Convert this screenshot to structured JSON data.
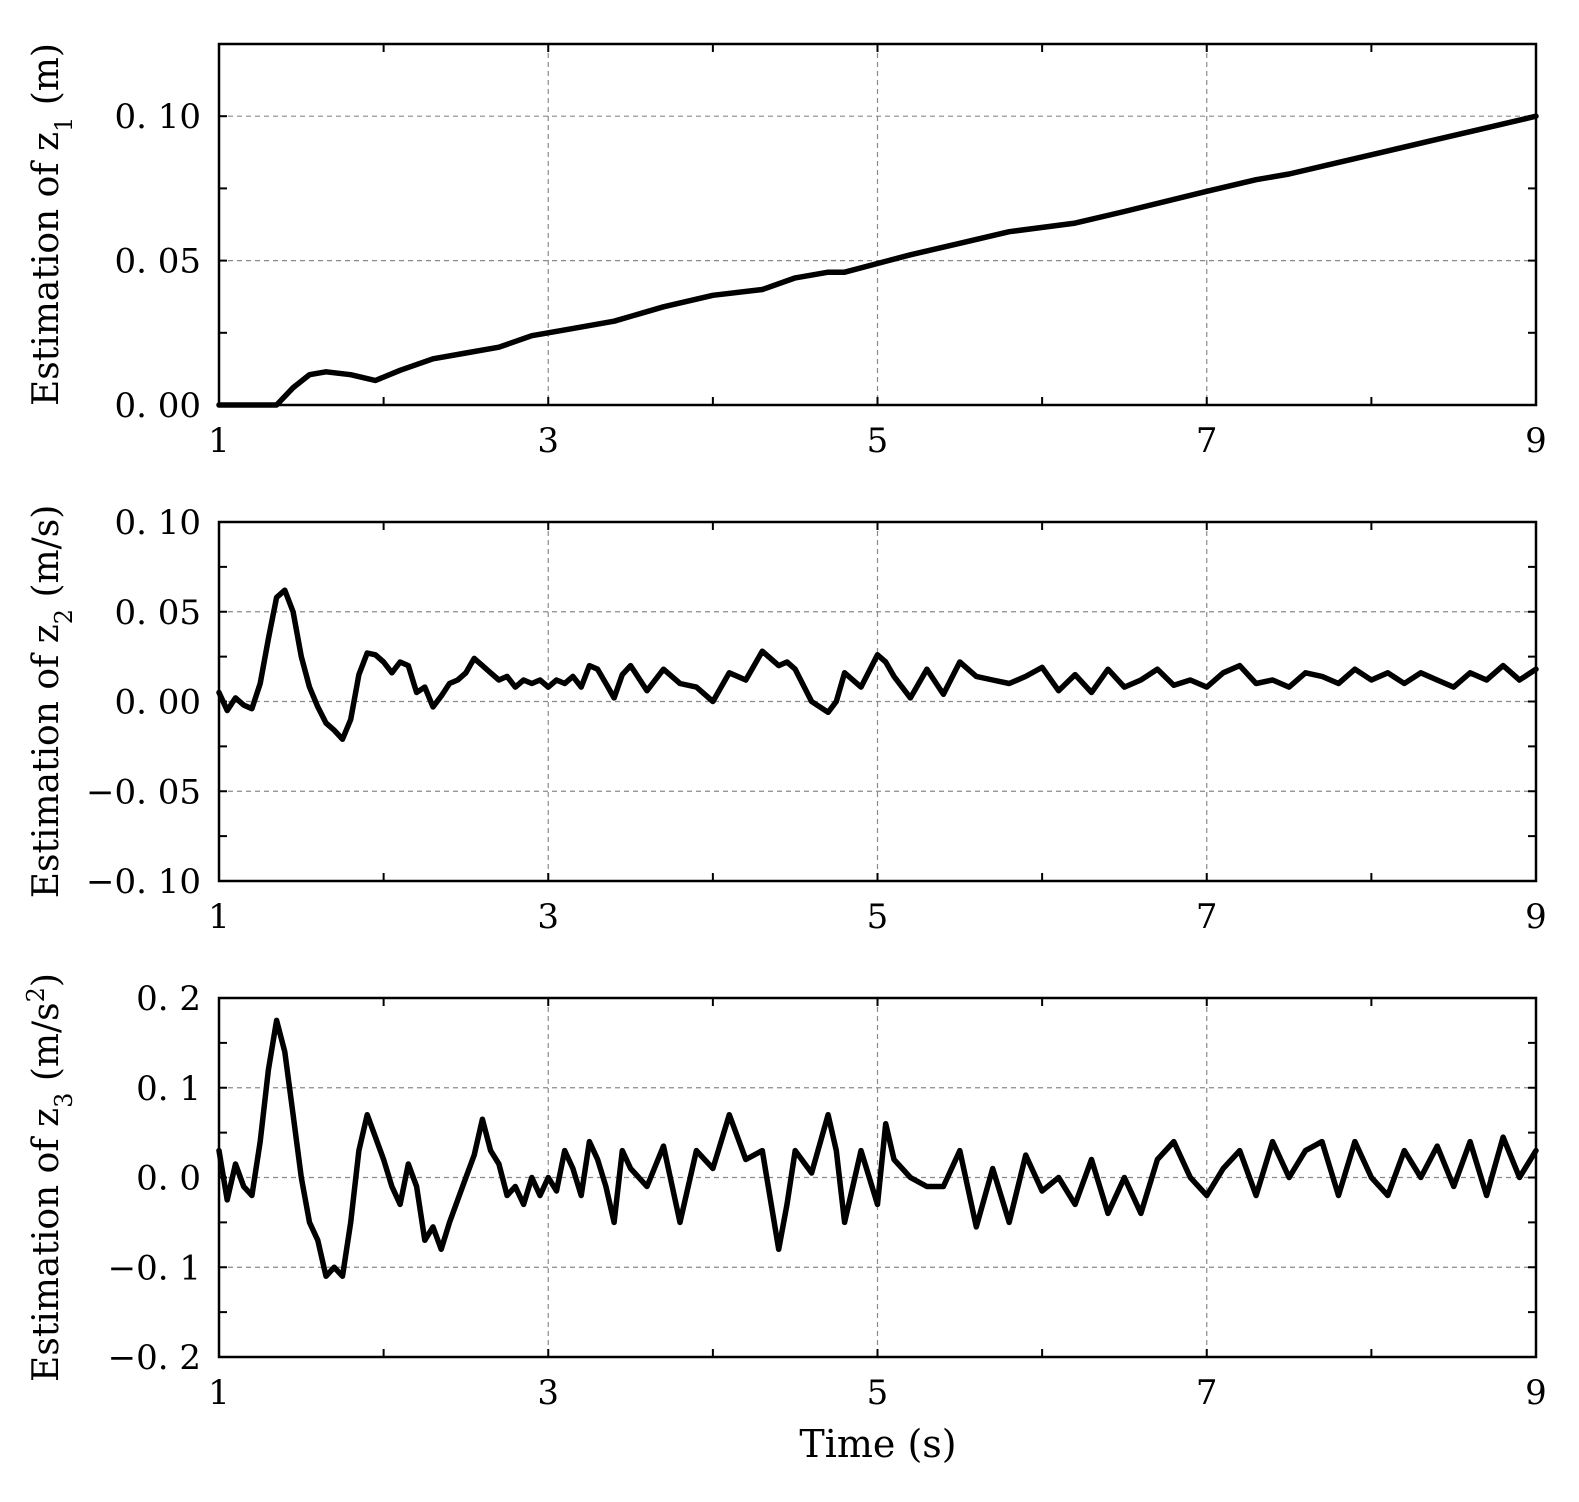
{
  "figure": {
    "xlabel": "Time (s)"
  },
  "chart_data": [
    {
      "type": "line",
      "ylabel_main": "Estimation of z",
      "ylabel_sub": "1",
      "ylabel_unit": " (m)",
      "xlim": [
        1,
        9
      ],
      "ylim": [
        0,
        0.125
      ],
      "xticks": [
        1,
        3,
        5,
        7,
        9
      ],
      "xtick_labels": [
        "1",
        "3",
        "5",
        "7",
        "9"
      ],
      "yticks": [
        0,
        0.05,
        0.1
      ],
      "ytick_labels": [
        "0. 00",
        "0. 05",
        "0. 10"
      ],
      "grid": true,
      "series": [
        {
          "color": "#000000",
          "x": [
            1.0,
            1.2,
            1.35,
            1.45,
            1.55,
            1.65,
            1.8,
            1.95,
            2.1,
            2.3,
            2.5,
            2.7,
            2.9,
            3.1,
            3.4,
            3.7,
            4.0,
            4.3,
            4.5,
            4.7,
            4.8,
            5.0,
            5.2,
            5.5,
            5.8,
            6.2,
            6.5,
            7.0,
            7.3,
            7.5,
            7.8,
            8.1,
            8.4,
            8.7,
            9.0
          ],
          "y": [
            0.0,
            0.0,
            0.0,
            0.006,
            0.0105,
            0.0115,
            0.0105,
            0.0085,
            0.012,
            0.016,
            0.018,
            0.02,
            0.024,
            0.026,
            0.029,
            0.034,
            0.038,
            0.04,
            0.044,
            0.046,
            0.046,
            0.049,
            0.052,
            0.056,
            0.06,
            0.063,
            0.067,
            0.074,
            0.078,
            0.08,
            0.084,
            0.088,
            0.092,
            0.096,
            0.1
          ]
        }
      ]
    },
    {
      "type": "line",
      "ylabel_main": "Estimation of z",
      "ylabel_sub": "2",
      "ylabel_unit": " (m/s)",
      "xlim": [
        1,
        9
      ],
      "ylim": [
        -0.1,
        0.1
      ],
      "xticks": [
        1,
        3,
        5,
        7,
        9
      ],
      "xtick_labels": [
        "1",
        "3",
        "5",
        "7",
        "9"
      ],
      "yticks": [
        -0.1,
        -0.05,
        0,
        0.05,
        0.1
      ],
      "ytick_labels": [
        "−0. 10",
        "−0. 05",
        "0. 00",
        "0. 05",
        "0. 10"
      ],
      "grid": true,
      "series": [
        {
          "color": "#000000",
          "x": [
            1.0,
            1.05,
            1.1,
            1.15,
            1.2,
            1.25,
            1.3,
            1.35,
            1.4,
            1.45,
            1.5,
            1.55,
            1.6,
            1.65,
            1.7,
            1.75,
            1.8,
            1.85,
            1.9,
            1.95,
            2.0,
            2.05,
            2.1,
            2.15,
            2.2,
            2.25,
            2.3,
            2.35,
            2.4,
            2.45,
            2.5,
            2.55,
            2.6,
            2.65,
            2.7,
            2.75,
            2.8,
            2.85,
            2.9,
            2.95,
            3.0,
            3.05,
            3.1,
            3.15,
            3.2,
            3.25,
            3.3,
            3.35,
            3.4,
            3.45,
            3.5,
            3.6,
            3.7,
            3.8,
            3.9,
            4.0,
            4.1,
            4.2,
            4.3,
            4.4,
            4.45,
            4.5,
            4.6,
            4.7,
            4.75,
            4.8,
            4.9,
            5.0,
            5.05,
            5.1,
            5.2,
            5.3,
            5.4,
            5.5,
            5.6,
            5.7,
            5.8,
            5.9,
            6.0,
            6.1,
            6.2,
            6.3,
            6.4,
            6.5,
            6.6,
            6.7,
            6.8,
            6.9,
            7.0,
            7.1,
            7.2,
            7.3,
            7.4,
            7.5,
            7.6,
            7.7,
            7.8,
            7.9,
            8.0,
            8.1,
            8.2,
            8.3,
            8.4,
            8.5,
            8.6,
            8.7,
            8.8,
            8.9,
            9.0
          ],
          "y": [
            0.005,
            -0.005,
            0.002,
            -0.002,
            -0.004,
            0.01,
            0.035,
            0.058,
            0.062,
            0.05,
            0.025,
            0.008,
            -0.003,
            -0.012,
            -0.016,
            -0.021,
            -0.01,
            0.015,
            0.027,
            0.026,
            0.022,
            0.016,
            0.022,
            0.02,
            0.005,
            0.008,
            -0.003,
            0.003,
            0.01,
            0.012,
            0.016,
            0.024,
            0.02,
            0.016,
            0.012,
            0.014,
            0.008,
            0.012,
            0.01,
            0.012,
            0.008,
            0.012,
            0.01,
            0.014,
            0.008,
            0.02,
            0.018,
            0.01,
            0.002,
            0.015,
            0.02,
            0.006,
            0.018,
            0.01,
            0.008,
            0.0,
            0.016,
            0.012,
            0.028,
            0.02,
            0.022,
            0.018,
            0.0,
            -0.006,
            0.0,
            0.016,
            0.008,
            0.026,
            0.022,
            0.014,
            0.002,
            0.018,
            0.004,
            0.022,
            0.014,
            0.012,
            0.01,
            0.014,
            0.019,
            0.006,
            0.015,
            0.005,
            0.018,
            0.008,
            0.012,
            0.018,
            0.009,
            0.012,
            0.008,
            0.016,
            0.02,
            0.01,
            0.012,
            0.008,
            0.016,
            0.014,
            0.01,
            0.018,
            0.012,
            0.016,
            0.01,
            0.016,
            0.012,
            0.008,
            0.016,
            0.012,
            0.02,
            0.012,
            0.018
          ]
        }
      ]
    },
    {
      "type": "line",
      "ylabel_main": "Estimation of z",
      "ylabel_sub": "3",
      "ylabel_unit": " (m/s",
      "ylabel_sup": "2",
      "ylabel_close": ")",
      "xlim": [
        1,
        9
      ],
      "ylim": [
        -0.2,
        0.2
      ],
      "xticks": [
        1,
        3,
        5,
        7,
        9
      ],
      "xtick_labels": [
        "1",
        "3",
        "5",
        "7",
        "9"
      ],
      "yticks": [
        -0.2,
        -0.1,
        0,
        0.1,
        0.2
      ],
      "ytick_labels": [
        "−0. 2",
        "−0. 1",
        "0. 0",
        "0. 1",
        "0. 2"
      ],
      "grid": true,
      "series": [
        {
          "color": "#000000",
          "x": [
            1.0,
            1.05,
            1.1,
            1.15,
            1.2,
            1.25,
            1.3,
            1.35,
            1.4,
            1.45,
            1.5,
            1.55,
            1.6,
            1.65,
            1.7,
            1.75,
            1.8,
            1.85,
            1.9,
            1.95,
            2.0,
            2.05,
            2.1,
            2.15,
            2.2,
            2.25,
            2.3,
            2.35,
            2.4,
            2.45,
            2.5,
            2.55,
            2.6,
            2.65,
            2.7,
            2.75,
            2.8,
            2.85,
            2.9,
            2.95,
            3.0,
            3.05,
            3.1,
            3.15,
            3.2,
            3.25,
            3.3,
            3.35,
            3.4,
            3.45,
            3.5,
            3.6,
            3.7,
            3.8,
            3.9,
            4.0,
            4.1,
            4.2,
            4.3,
            4.4,
            4.45,
            4.5,
            4.6,
            4.7,
            4.75,
            4.8,
            4.9,
            5.0,
            5.05,
            5.1,
            5.2,
            5.3,
            5.4,
            5.5,
            5.6,
            5.7,
            5.8,
            5.9,
            6.0,
            6.1,
            6.2,
            6.3,
            6.4,
            6.5,
            6.6,
            6.7,
            6.8,
            6.9,
            7.0,
            7.1,
            7.2,
            7.3,
            7.4,
            7.5,
            7.6,
            7.7,
            7.8,
            7.9,
            8.0,
            8.1,
            8.2,
            8.3,
            8.4,
            8.5,
            8.6,
            8.7,
            8.8,
            8.9,
            9.0
          ],
          "y": [
            0.03,
            -0.025,
            0.015,
            -0.01,
            -0.02,
            0.04,
            0.12,
            0.175,
            0.14,
            0.07,
            0.0,
            -0.05,
            -0.07,
            -0.11,
            -0.1,
            -0.11,
            -0.05,
            0.03,
            0.07,
            0.045,
            0.02,
            -0.01,
            -0.03,
            0.015,
            -0.01,
            -0.07,
            -0.055,
            -0.08,
            -0.05,
            -0.025,
            0.0,
            0.025,
            0.065,
            0.03,
            0.015,
            -0.02,
            -0.01,
            -0.03,
            0.0,
            -0.02,
            0.0,
            -0.015,
            0.03,
            0.01,
            -0.02,
            0.04,
            0.02,
            -0.01,
            -0.05,
            0.03,
            0.01,
            -0.01,
            0.035,
            -0.05,
            0.03,
            0.01,
            0.07,
            0.02,
            0.03,
            -0.08,
            -0.03,
            0.03,
            0.005,
            0.07,
            0.03,
            -0.05,
            0.03,
            -0.03,
            0.06,
            0.02,
            0.0,
            -0.01,
            -0.01,
            0.03,
            -0.055,
            0.01,
            -0.05,
            0.025,
            -0.015,
            0.0,
            -0.03,
            0.02,
            -0.04,
            0.0,
            -0.04,
            0.02,
            0.04,
            0.0,
            -0.02,
            0.01,
            0.03,
            -0.02,
            0.04,
            0.0,
            0.03,
            0.04,
            -0.02,
            0.04,
            0.0,
            -0.02,
            0.03,
            0.0,
            0.035,
            -0.01,
            0.04,
            -0.02,
            0.045,
            0.0,
            0.03
          ]
        }
      ]
    }
  ]
}
